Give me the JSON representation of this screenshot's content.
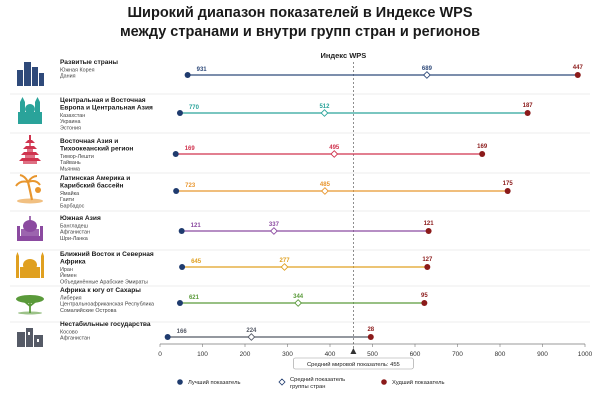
{
  "title_line1": "Широкий диапазон показателей в Индексе WPS",
  "title_line2": "между странами и внутри групп стран и регионов",
  "chart_data": {
    "type": "dumbbell",
    "title": "Индекс WPS",
    "xlim": [
      0,
      1000
    ],
    "xticks": [
      0,
      100,
      200,
      300,
      400,
      500,
      600,
      700,
      800,
      900,
      1000
    ],
    "reference": {
      "value": 455,
      "label": "Средний мировой показатель: 455"
    },
    "legend": [
      {
        "key": "best",
        "label": "Лучший показатель",
        "color": "#1f3b6e"
      },
      {
        "key": "avg",
        "label": "Средний показатель группы стран",
        "color": "#ffffff"
      },
      {
        "key": "worst",
        "label": "Худший показатель",
        "color": "#8b1a1a"
      }
    ],
    "groups": [
      {
        "name": "Развитые страны",
        "countries": [
          "Южная Корея",
          "Дания"
        ],
        "color": "#2f4a7a",
        "icon": "skyscrapers-icon",
        "best": 931,
        "avg": 689,
        "worst": 447,
        "pos": {
          "best": 65,
          "avg": 628,
          "worst": 983
        }
      },
      {
        "name": "Центральная и Восточная Европа и Центральная Азия",
        "countries": [
          "Казахстан",
          "Украина",
          "Эстония"
        ],
        "color": "#2aa39a",
        "icon": "cathedral-icon",
        "best": 770,
        "avg": 512,
        "worst": 187,
        "pos": {
          "best": 47,
          "avg": 387,
          "worst": 865
        }
      },
      {
        "name": "Восточная Азия и Тихоокеанский регион",
        "countries": [
          "Тимор-Лешти",
          "Тайвань",
          "Мьянма"
        ],
        "color": "#d0334e",
        "icon": "pagoda-icon",
        "best": 169,
        "avg": 495,
        "worst": 169,
        "pos": {
          "best": 37,
          "avg": 410,
          "worst": 758
        }
      },
      {
        "name": "Латинская Америка и Карибский бассейн",
        "countries": [
          "Ямайка",
          "Гаити",
          "Барбадос"
        ],
        "color": "#e8962e",
        "icon": "palm-icon",
        "best": 723,
        "avg": 485,
        "worst": 175,
        "pos": {
          "best": 38,
          "avg": 388,
          "worst": 818
        }
      },
      {
        "name": "Южная Азия",
        "countries": [
          "Бангладеш",
          "Афганистан",
          "Шри-Ланка"
        ],
        "color": "#8b4aa0",
        "icon": "temple-icon",
        "best": 121,
        "avg": 337,
        "worst": 121,
        "pos": {
          "best": 51,
          "avg": 268,
          "worst": 632
        }
      },
      {
        "name": "Ближний Восток и Северная Африка",
        "countries": [
          "Иран",
          "Йемен",
          "Объединённые Арабские Эмираты"
        ],
        "color": "#e0a020",
        "icon": "mosque-icon",
        "best": 645,
        "avg": 277,
        "worst": 127,
        "pos": {
          "best": 52,
          "avg": 293,
          "worst": 629
        }
      },
      {
        "name": "Африка к югу от Сахары",
        "countries": [
          "Либерия",
          "Центральноафриканская Республика",
          "Сомалийские Острова"
        ],
        "color": "#5a9a3a",
        "icon": "acacia-icon",
        "best": 621,
        "avg": 344,
        "worst": 95,
        "pos": {
          "best": 47,
          "avg": 325,
          "worst": 622
        }
      },
      {
        "name": "Нестабильные государства",
        "countries": [
          "Косово",
          "Афганистан"
        ],
        "color": "#555a66",
        "icon": "ruins-icon",
        "best": 166,
        "avg": 224,
        "worst": 28,
        "pos": {
          "best": 18,
          "avg": 215,
          "worst": 496
        }
      }
    ]
  }
}
